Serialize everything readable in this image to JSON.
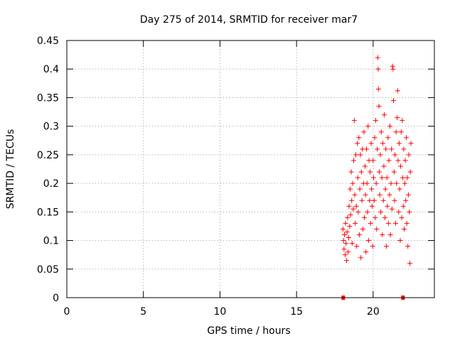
{
  "chart_data": {
    "type": "scatter",
    "title": "Day 275 of 2014, SRMTID for receiver mar7",
    "xlabel": "GPS time / hours",
    "ylabel": "SRMTID / TECUs",
    "xlim": [
      0,
      24
    ],
    "ylim": [
      0,
      0.45
    ],
    "x_ticks": [
      0,
      5,
      10,
      15,
      20
    ],
    "y_ticks": [
      0,
      0.05,
      0.1,
      0.15,
      0.2,
      0.25,
      0.3,
      0.35,
      0.4,
      0.45
    ],
    "x_tick_labels": [
      "0",
      "5",
      "10",
      "15",
      "20"
    ],
    "y_tick_labels": [
      "0",
      "0.05",
      "0.1",
      "0.15",
      "0.2",
      "0.25",
      "0.3",
      "0.35",
      "0.4",
      "0.45"
    ],
    "grid": true,
    "marker": "+",
    "color": "#ff0000",
    "outline_markers": {
      "color": "#ff0000",
      "points": [
        [
          18.05,
          0
        ],
        [
          21.95,
          0
        ]
      ]
    },
    "series": [
      {
        "name": "SRMTID",
        "points": [
          [
            18.03,
            0.12
          ],
          [
            18.07,
            0.1
          ],
          [
            18.1,
            0.085
          ],
          [
            18.13,
            0.11
          ],
          [
            18.17,
            0.075
          ],
          [
            18.2,
            0.13
          ],
          [
            18.23,
            0.095
          ],
          [
            18.27,
            0.065
          ],
          [
            18.3,
            0.115
          ],
          [
            18.33,
            0.14
          ],
          [
            18.37,
            0.08
          ],
          [
            18.4,
            0.105
          ],
          [
            18.43,
            0.16
          ],
          [
            18.47,
            0.125
          ],
          [
            18.5,
            0.19
          ],
          [
            18.53,
            0.145
          ],
          [
            18.57,
            0.22
          ],
          [
            18.6,
            0.17
          ],
          [
            18.63,
            0.095
          ],
          [
            18.67,
            0.2
          ],
          [
            18.7,
            0.155
          ],
          [
            18.73,
            0.24
          ],
          [
            18.77,
            0.31
          ],
          [
            18.8,
            0.18
          ],
          [
            18.83,
            0.13
          ],
          [
            18.87,
            0.25
          ],
          [
            18.9,
            0.16
          ],
          [
            18.93,
            0.09
          ],
          [
            18.97,
            0.27
          ],
          [
            19.0,
            0.21
          ],
          [
            19.03,
            0.15
          ],
          [
            19.07,
            0.28
          ],
          [
            19.1,
            0.11
          ],
          [
            19.13,
            0.19
          ],
          [
            19.17,
            0.25
          ],
          [
            19.2,
            0.07
          ],
          [
            19.23,
            0.22
          ],
          [
            19.27,
            0.17
          ],
          [
            19.3,
            0.26
          ],
          [
            19.33,
            0.12
          ],
          [
            19.37,
            0.2
          ],
          [
            19.4,
            0.29
          ],
          [
            19.43,
            0.14
          ],
          [
            19.47,
            0.23
          ],
          [
            19.5,
            0.18
          ],
          [
            19.53,
            0.08
          ],
          [
            19.57,
            0.26
          ],
          [
            19.6,
            0.2
          ],
          [
            19.63,
            0.15
          ],
          [
            19.67,
            0.3
          ],
          [
            19.7,
            0.1
          ],
          [
            19.73,
            0.24
          ],
          [
            19.77,
            0.17
          ],
          [
            19.8,
            0.22
          ],
          [
            19.83,
            0.13
          ],
          [
            19.87,
            0.27
          ],
          [
            19.9,
            0.19
          ],
          [
            19.93,
            0.16
          ],
          [
            19.97,
            0.09
          ],
          [
            20.0,
            0.24
          ],
          [
            20.03,
            0.21
          ],
          [
            20.07,
            0.17
          ],
          [
            20.1,
            0.28
          ],
          [
            20.13,
            0.14
          ],
          [
            20.17,
            0.31
          ],
          [
            20.2,
            0.2
          ],
          [
            20.23,
            0.12
          ],
          [
            20.27,
            0.26
          ],
          [
            20.3,
            0.42
          ],
          [
            20.33,
            0.4
          ],
          [
            20.35,
            0.365
          ],
          [
            20.38,
            0.335
          ],
          [
            20.4,
            0.22
          ],
          [
            20.43,
            0.18
          ],
          [
            20.47,
            0.25
          ],
          [
            20.5,
            0.15
          ],
          [
            20.53,
            0.29
          ],
          [
            20.57,
            0.21
          ],
          [
            20.6,
            0.11
          ],
          [
            20.63,
            0.27
          ],
          [
            20.67,
            0.17
          ],
          [
            20.7,
            0.23
          ],
          [
            20.73,
            0.32
          ],
          [
            20.77,
            0.14
          ],
          [
            20.8,
            0.19
          ],
          [
            20.83,
            0.26
          ],
          [
            20.87,
            0.09
          ],
          [
            20.9,
            0.21
          ],
          [
            20.93,
            0.16
          ],
          [
            20.97,
            0.28
          ],
          [
            21.0,
            0.13
          ],
          [
            21.03,
            0.24
          ],
          [
            21.07,
            0.18
          ],
          [
            21.1,
            0.3
          ],
          [
            21.13,
            0.11
          ],
          [
            21.17,
            0.2
          ],
          [
            21.2,
            0.26
          ],
          [
            21.23,
            0.155
          ],
          [
            21.27,
            0.405
          ],
          [
            21.3,
            0.4
          ],
          [
            21.33,
            0.345
          ],
          [
            21.37,
            0.22
          ],
          [
            21.4,
            0.17
          ],
          [
            21.43,
            0.25
          ],
          [
            21.47,
            0.13
          ],
          [
            21.5,
            0.29
          ],
          [
            21.53,
            0.2
          ],
          [
            21.57,
            0.315
          ],
          [
            21.6,
            0.362
          ],
          [
            21.63,
            0.24
          ],
          [
            21.67,
            0.15
          ],
          [
            21.7,
            0.27
          ],
          [
            21.73,
            0.19
          ],
          [
            21.77,
            0.1
          ],
          [
            21.8,
            0.23
          ],
          [
            21.83,
            0.29
          ],
          [
            21.87,
            0.14
          ],
          [
            21.9,
            0.31
          ],
          [
            21.93,
            0.21
          ],
          [
            21.97,
            0.16
          ],
          [
            22.0,
            0.26
          ],
          [
            22.03,
            0.12
          ],
          [
            22.07,
            0.2
          ],
          [
            22.1,
            0.24
          ],
          [
            22.13,
            0.17
          ],
          [
            22.17,
            0.28
          ],
          [
            22.2,
            0.13
          ],
          [
            22.23,
            0.21
          ],
          [
            22.27,
            0.09
          ],
          [
            22.3,
            0.18
          ],
          [
            22.33,
            0.25
          ],
          [
            22.37,
            0.15
          ],
          [
            22.4,
            0.06
          ],
          [
            22.43,
            0.22
          ],
          [
            22.47,
            0.27
          ]
        ]
      }
    ]
  }
}
